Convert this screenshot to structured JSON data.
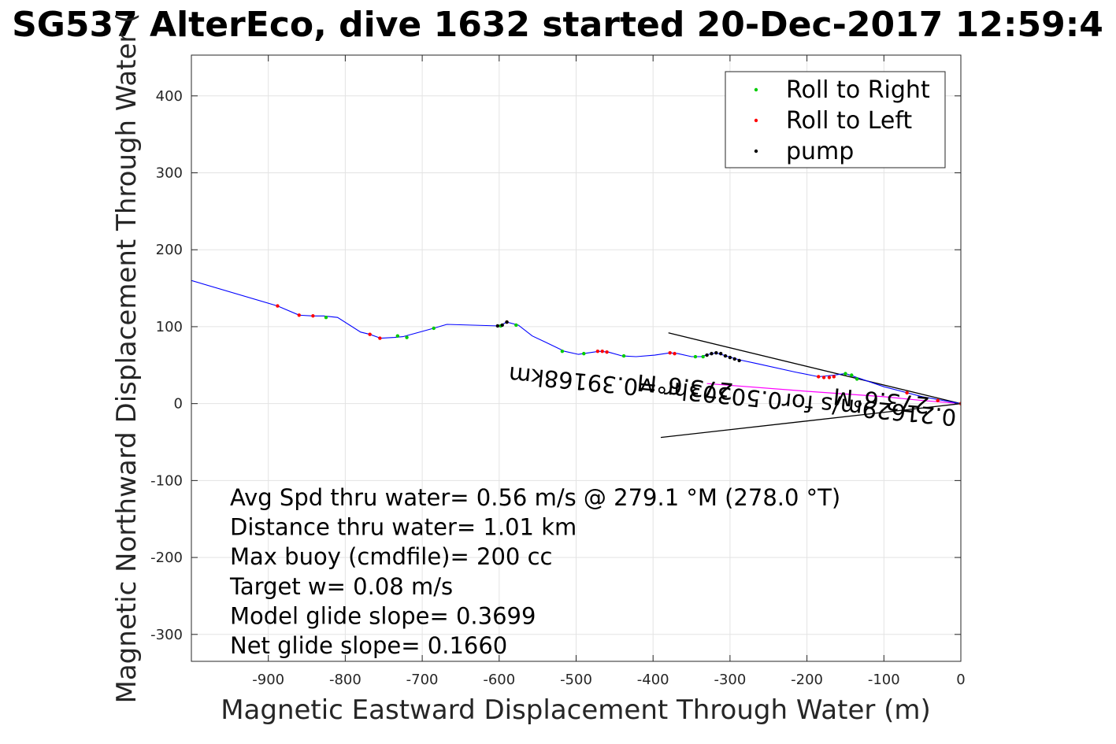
{
  "chart_data": {
    "type": "line",
    "title": "SG537 AlterEco, dive 1632 started 20-Dec-2017 12:59:4",
    "xlabel": "Magnetic Eastward Displacement Through Water (m)",
    "ylabel": "Magnetic Northward Displacement Through Water (",
    "xlim": [
      -1000,
      0
    ],
    "ylim": [
      -335,
      453
    ],
    "xticks": [
      -900,
      -800,
      -700,
      -600,
      -500,
      -400,
      -300,
      -200,
      -100,
      0
    ],
    "yticks": [
      -300,
      -200,
      -100,
      0,
      100,
      200,
      300,
      400
    ],
    "grid": true,
    "legend": {
      "placement": "top-right",
      "entries": [
        {
          "label": "Roll to Right",
          "color": "#00cc00"
        },
        {
          "label": "Roll to Left",
          "color": "#ff0000"
        },
        {
          "label": "pump",
          "color": "#000000"
        }
      ]
    },
    "track": {
      "name": "track",
      "color": "#0000ff",
      "x": [
        -1000,
        -888,
        -860,
        -842,
        -828,
        -810,
        -780,
        -768,
        -754,
        -736,
        -725,
        -685,
        -668,
        -600,
        -590,
        -575,
        -557,
        -540,
        -515,
        -497,
        -470,
        -458,
        -440,
        -422,
        -398,
        -378,
        -368,
        -350,
        -338,
        -328,
        -318,
        -305,
        -288,
        -265,
        -215,
        -185,
        -165,
        -150,
        -100,
        -50,
        0
      ],
      "y": [
        160,
        127,
        115,
        114,
        114,
        112,
        93,
        90,
        85,
        86,
        87,
        98,
        103,
        101,
        106,
        102,
        88,
        80,
        68,
        64,
        68,
        67,
        62,
        61,
        63,
        66,
        65,
        61,
        61,
        64,
        66,
        62,
        57,
        52,
        41,
        35,
        37,
        39,
        22,
        9,
        0
      ]
    },
    "return_line": {
      "color": "#ff00ff",
      "x": [
        -330,
        -200,
        -100,
        -50,
        0
      ],
      "y": [
        26,
        16,
        9,
        4,
        0
      ]
    },
    "roll_right": {
      "x": [
        -825,
        -732,
        -720,
        -685,
        -598,
        -578,
        -518,
        -490,
        -438,
        -345,
        -335,
        -150,
        -142,
        -135
      ],
      "y": [
        112,
        88,
        86,
        98,
        101,
        102,
        68,
        65,
        62,
        61,
        61,
        39,
        37,
        32
      ]
    },
    "roll_left": {
      "x": [
        -888,
        -860,
        -842,
        -768,
        -755,
        -590,
        -472,
        -466,
        -460,
        -378,
        -372,
        -185,
        -178,
        -171,
        -165,
        -70,
        -30,
        0
      ],
      "y": [
        127,
        115,
        114,
        90,
        85,
        106,
        68,
        68,
        67,
        66,
        65,
        35,
        34,
        34,
        35,
        14,
        4,
        0
      ]
    },
    "pump": {
      "x": [
        -602,
        -596,
        -590,
        -330,
        -324,
        -318,
        -312,
        -306,
        -300,
        -294,
        -288
      ],
      "y": [
        101,
        102,
        106,
        63,
        65,
        66,
        65,
        62,
        60,
        58,
        56
      ]
    },
    "cone_lines": [
      {
        "x": [
          -380,
          0
        ],
        "y": [
          92,
          0
        ]
      },
      {
        "x": [
          -390,
          0
        ],
        "y": [
          -44,
          0
        ]
      }
    ],
    "rotated_annotations": [
      {
        "text": "0.21629m/s for0.50303hr =0.39168km",
        "anchor_x": -5,
        "anchor_y": -8
      },
      {
        "text": "273.6°M",
        "anchor_x": -295,
        "anchor_y": 26
      },
      {
        "text": "273.6°M",
        "anchor_x": -40,
        "anchor_y": 8
      }
    ],
    "stats": [
      "Avg Spd thru water=  0.56 m/s @ 279.1 °M (278.0 °T)",
      "Distance thru water=  1.01 km",
      "Max buoy (cmdfile)= 200 cc",
      "Target w= 0.08 m/s",
      "Model glide slope= 0.3699",
      "Net glide slope= 0.1660"
    ]
  }
}
